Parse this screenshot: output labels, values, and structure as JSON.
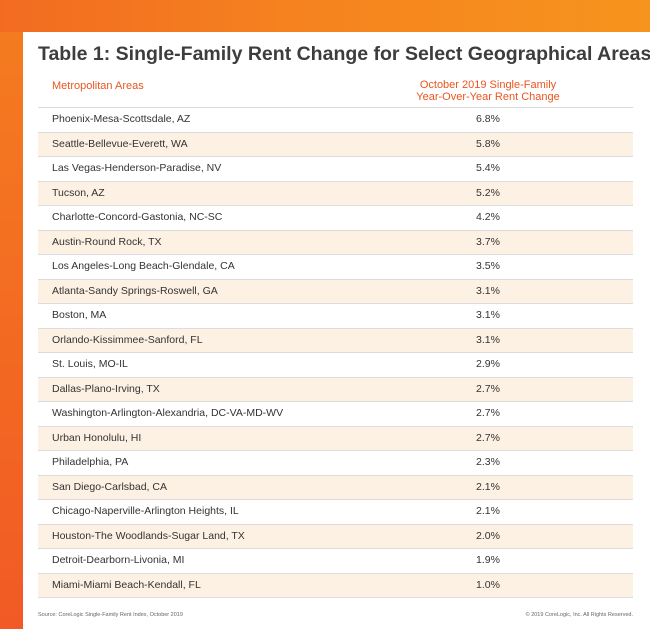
{
  "colors": {
    "accent_orange": "#f5821f",
    "header_text": "#e8561f",
    "stripe": "#fdf1e3"
  },
  "title": "Table 1: Single-Family Rent Change for Select Geographical Areas",
  "table": {
    "col_area": "Metropolitan Areas",
    "col_change_line1": "October 2019 Single-Family",
    "col_change_line2": "Year-Over-Year Rent Change",
    "rows": [
      {
        "area": "Phoenix-Mesa-Scottsdale, AZ",
        "change": "6.8%"
      },
      {
        "area": "Seattle-Bellevue-Everett, WA",
        "change": "5.8%"
      },
      {
        "area": "Las Vegas-Henderson-Paradise, NV",
        "change": "5.4%"
      },
      {
        "area": "Tucson, AZ",
        "change": "5.2%"
      },
      {
        "area": "Charlotte-Concord-Gastonia, NC-SC",
        "change": "4.2%"
      },
      {
        "area": "Austin-Round Rock, TX",
        "change": "3.7%"
      },
      {
        "area": "Los Angeles-Long Beach-Glendale, CA",
        "change": "3.5%"
      },
      {
        "area": "Atlanta-Sandy Springs-Roswell, GA",
        "change": "3.1%"
      },
      {
        "area": "Boston, MA",
        "change": "3.1%"
      },
      {
        "area": "Orlando-Kissimmee-Sanford, FL",
        "change": "3.1%"
      },
      {
        "area": "St. Louis, MO-IL",
        "change": "2.9%"
      },
      {
        "area": "Dallas-Plano-Irving, TX",
        "change": "2.7%"
      },
      {
        "area": "Washington-Arlington-Alexandria, DC-VA-MD-WV",
        "change": "2.7%"
      },
      {
        "area": "Urban Honolulu, HI",
        "change": "2.7%"
      },
      {
        "area": "Philadelphia, PA",
        "change": "2.3%"
      },
      {
        "area": "San Diego-Carlsbad, CA",
        "change": "2.1%"
      },
      {
        "area": "Chicago-Naperville-Arlington Heights, IL",
        "change": "2.1%"
      },
      {
        "area": "Houston-The Woodlands-Sugar Land, TX",
        "change": "2.0%"
      },
      {
        "area": "Detroit-Dearborn-Livonia, MI",
        "change": "1.9%"
      },
      {
        "area": "Miami-Miami Beach-Kendall, FL",
        "change": "1.0%"
      }
    ]
  },
  "footer": {
    "source": "Source: CoreLogic Single-Family Rent Index, October 2019",
    "copyright": "© 2019 CoreLogic, Inc. All Rights Reserved."
  }
}
